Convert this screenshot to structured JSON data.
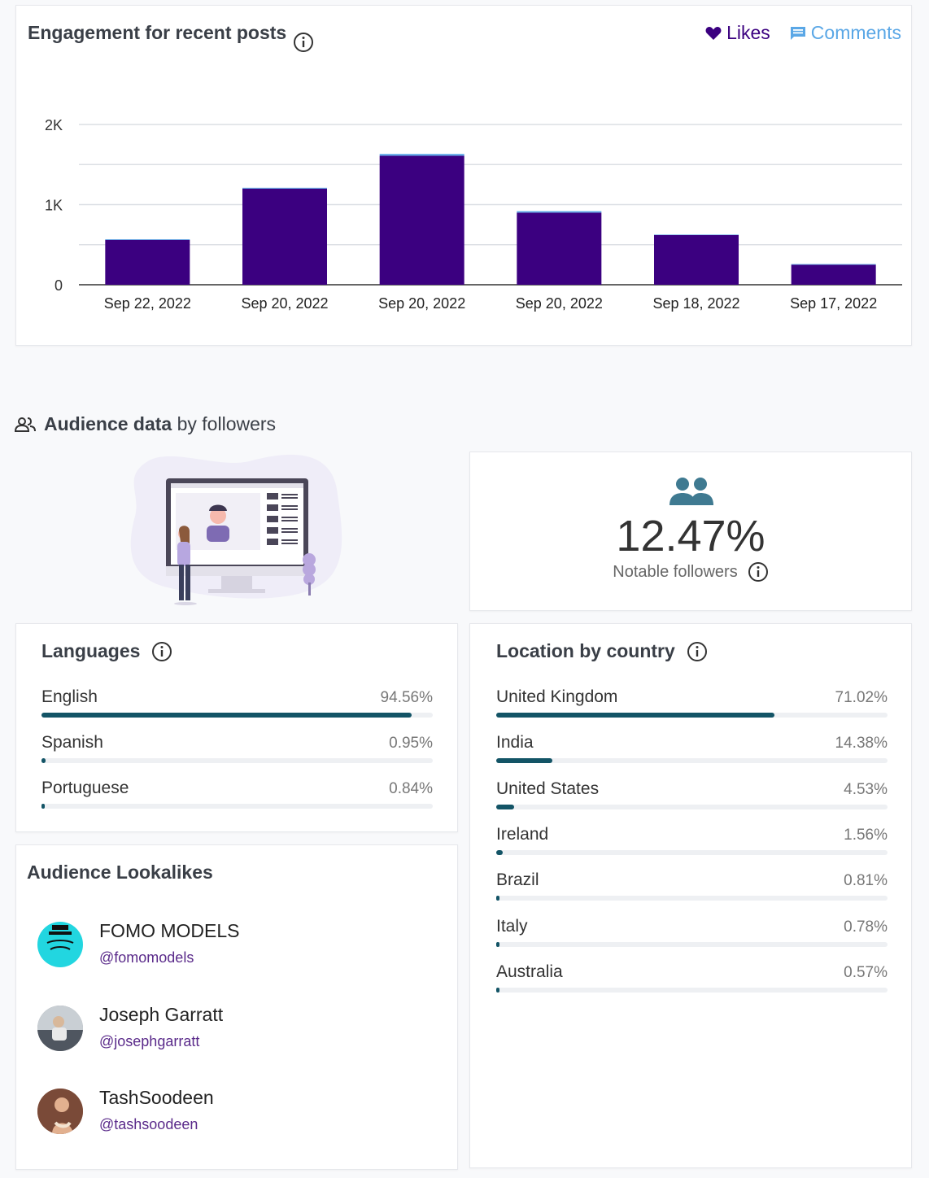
{
  "engagement": {
    "title": "Engagement for recent posts",
    "legend": {
      "likes": "Likes",
      "comments": "Comments"
    },
    "colors": {
      "likes": "#3b0080",
      "comments": "#5aa7e6"
    }
  },
  "chart_data": {
    "type": "bar",
    "stacked": true,
    "title": "Engagement for recent posts",
    "categories": [
      "Sep 22, 2022",
      "Sep 20, 2022",
      "Sep 20, 2022",
      "Sep 20, 2022",
      "Sep 18, 2022",
      "Sep 17, 2022"
    ],
    "series": [
      {
        "name": "Likes",
        "values": [
          560,
          1200,
          1610,
          900,
          620,
          250
        ]
      },
      {
        "name": "Comments",
        "values": [
          8,
          10,
          22,
          18,
          6,
          8
        ]
      }
    ],
    "ylim": [
      0,
      2000
    ],
    "yticks": [
      0,
      1000,
      2000
    ],
    "ytick_labels": [
      "0",
      "1K",
      "2K"
    ],
    "xlabel": "",
    "ylabel": ""
  },
  "audience": {
    "heading_bold": "Audience data",
    "heading_rest": "by followers"
  },
  "notable": {
    "value": "12.47%",
    "label": "Notable followers",
    "color": "#3f7a91"
  },
  "languages": {
    "title": "Languages",
    "items": [
      {
        "label": "English",
        "pct_text": "94.56%",
        "pct": 94.56
      },
      {
        "label": "Spanish",
        "pct_text": "0.95%",
        "pct": 0.95
      },
      {
        "label": "Portuguese",
        "pct_text": "0.84%",
        "pct": 0.84
      }
    ]
  },
  "countries": {
    "title": "Location by country",
    "items": [
      {
        "label": "United Kingdom",
        "pct_text": "71.02%",
        "pct": 71.02
      },
      {
        "label": "India",
        "pct_text": "14.38%",
        "pct": 14.38
      },
      {
        "label": "United States",
        "pct_text": "4.53%",
        "pct": 4.53
      },
      {
        "label": "Ireland",
        "pct_text": "1.56%",
        "pct": 1.56
      },
      {
        "label": "Brazil",
        "pct_text": "0.81%",
        "pct": 0.81
      },
      {
        "label": "Italy",
        "pct_text": "0.78%",
        "pct": 0.78
      },
      {
        "label": "Australia",
        "pct_text": "0.57%",
        "pct": 0.57
      }
    ]
  },
  "lookalikes": {
    "title": "Audience Lookalikes",
    "items": [
      {
        "name": "FOMO MODELS",
        "handle": "@fomomodels",
        "avatar_color": "#22d6e0"
      },
      {
        "name": "Joseph Garratt",
        "handle": "@josephgarratt",
        "avatar_color": "#8a8f95"
      },
      {
        "name": "TashSoodeen",
        "handle": "@tashsoodeen",
        "avatar_color": "#c98b6a"
      }
    ]
  }
}
